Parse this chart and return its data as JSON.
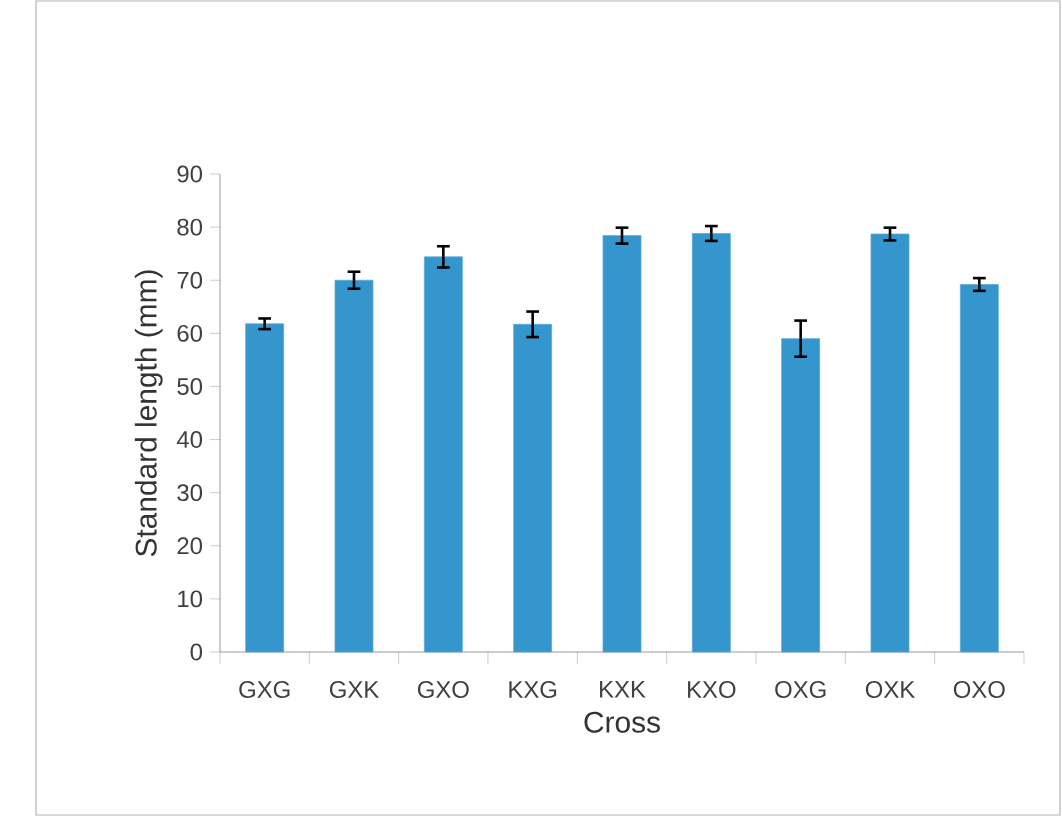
{
  "chart_data": {
    "type": "bar",
    "xlabel": "Cross",
    "ylabel": "Standard length (mm)",
    "categories": [
      "GXG",
      "GXK",
      "GXO",
      "KXG",
      "KXK",
      "KXO",
      "OXG",
      "OXK",
      "OXO"
    ],
    "values": [
      61.8,
      70.0,
      74.4,
      61.7,
      78.4,
      78.8,
      59.0,
      78.7,
      69.2
    ],
    "errors": [
      1.0,
      1.6,
      2.0,
      2.4,
      1.5,
      1.4,
      3.4,
      1.2,
      1.2
    ],
    "color": "#3595cd",
    "ylim": [
      0,
      90
    ],
    "yticks": [
      0,
      10,
      20,
      30,
      40,
      50,
      60,
      70,
      80,
      90
    ]
  }
}
